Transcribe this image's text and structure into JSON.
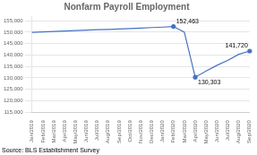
{
  "chart_data": {
    "type": "line",
    "title": "Nonfarm Payroll Employment",
    "source": "Source: BLS Establishment Survey",
    "categories": [
      "Jan/2019",
      "Feb/2019",
      "Mar/2019",
      "Apr/2019",
      "May/2019",
      "Jun/2019",
      "Jul/2019",
      "Aug/2019",
      "Sep/2019",
      "Oct/2019",
      "Nov/2019",
      "Dec/2019",
      "Jan/2020",
      "Feb/2020",
      "Mar/2020",
      "Apr/2020",
      "May/2020",
      "Jun/2020",
      "Jul/2020",
      "Aug/2020",
      "Sep/2020"
    ],
    "values": [
      149900,
      150100,
      150300,
      150500,
      150700,
      150900,
      151100,
      151200,
      151400,
      151600,
      151800,
      152000,
      152200,
      152463,
      150000,
      130303,
      133000,
      135500,
      137700,
      140300,
      141720
    ],
    "color": "#4472C4",
    "ylim": [
      115000,
      157000
    ],
    "yticks": [
      {
        "value": 115000,
        "label": "115,000"
      },
      {
        "value": 120000,
        "label": "120,000"
      },
      {
        "value": 125000,
        "label": "125,000"
      },
      {
        "value": 130000,
        "label": "130,000"
      },
      {
        "value": 135000,
        "label": "135,000"
      },
      {
        "value": 140000,
        "label": "140,000"
      },
      {
        "value": 145000,
        "label": "145,000"
      },
      {
        "value": 150000,
        "label": "150,000"
      },
      {
        "value": 155000,
        "label": "155,000"
      }
    ],
    "grid": true,
    "annotations": [
      {
        "category": "Feb/2020",
        "value": 152463,
        "text": "152,463",
        "marker": "circle"
      },
      {
        "category": "Apr/2020",
        "value": 130303,
        "text": "130,303",
        "marker": "circle"
      },
      {
        "category": "Sep/2020",
        "value": 141720,
        "text": "141,720",
        "marker": "circle"
      }
    ]
  }
}
